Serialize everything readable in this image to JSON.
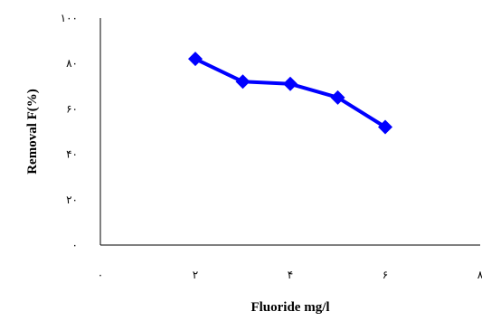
{
  "chart_data": {
    "type": "line",
    "title": "",
    "xlabel": "Fluoride mg/l",
    "ylabel": "Removal F(%)",
    "xlim": [
      0,
      8
    ],
    "ylim": [
      0,
      100
    ],
    "x_ticks": [
      {
        "value": 0,
        "label": "۰"
      },
      {
        "value": 2,
        "label": "۲"
      },
      {
        "value": 4,
        "label": "۴"
      },
      {
        "value": 6,
        "label": "۶"
      },
      {
        "value": 8,
        "label": "۸"
      }
    ],
    "y_ticks": [
      {
        "value": 0,
        "label": "۰"
      },
      {
        "value": 20,
        "label": "۲۰"
      },
      {
        "value": 40,
        "label": "۴۰"
      },
      {
        "value": 60,
        "label": "۶۰"
      },
      {
        "value": 80,
        "label": "۸۰"
      },
      {
        "value": 100,
        "label": "۱۰۰"
      }
    ],
    "grid": false,
    "legend": "none",
    "series": [
      {
        "color": "#0000ff",
        "marker": "diamond",
        "x": [
          2,
          3,
          4,
          5,
          6
        ],
        "y": [
          82,
          72,
          71,
          65,
          52
        ]
      }
    ]
  }
}
